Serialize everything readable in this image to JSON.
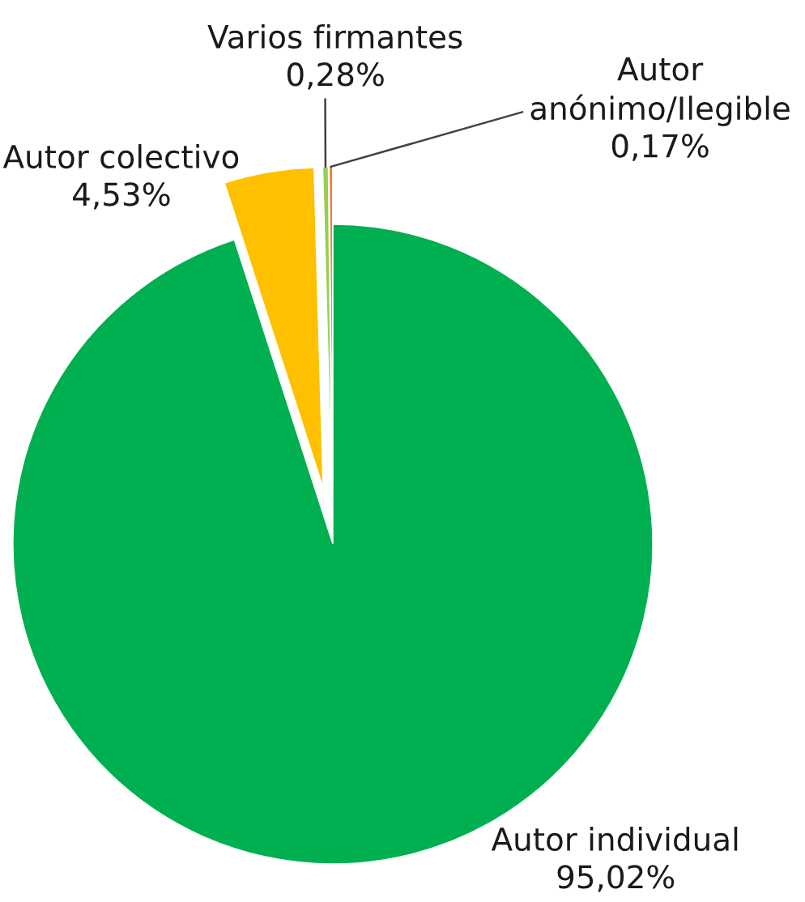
{
  "chart_data": {
    "type": "pie",
    "categories": [
      "Autor individual",
      "Autor colectivo",
      "Varios firmantes",
      "Autor anónimo/Ilegible"
    ],
    "values": [
      95.02,
      4.53,
      0.28,
      0.17
    ],
    "colors": [
      "#00b050",
      "#ffc000",
      "#92d050",
      "#ed7d31"
    ],
    "value_labels": [
      "95,02%",
      "4,53%",
      "0,28%",
      "0,17%"
    ]
  }
}
